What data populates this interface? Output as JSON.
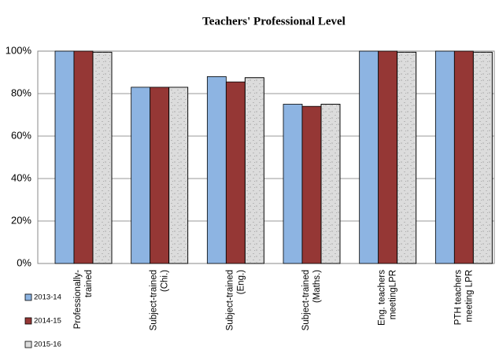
{
  "chart_data": {
    "type": "bar",
    "title": "Teachers' Professional Level",
    "categories": [
      "Professionally-\ntrained",
      "Subject-trained\n(Chi.)",
      "Subject-trained\n(Eng.)",
      "Subject-trained\n(Maths.)",
      "Eng. teachers\nmeetingLPR",
      "PTH teachers\nmeeting LPR"
    ],
    "series": [
      {
        "name": "2013-14",
        "color": "#8db4e2",
        "values": [
          100,
          83,
          88,
          75,
          100,
          100
        ]
      },
      {
        "name": "2014-15",
        "color": "#953735",
        "values": [
          100,
          83,
          85.5,
          74,
          100,
          100
        ]
      },
      {
        "name": "2015-16",
        "color": "#dcdcdc",
        "values": [
          99.5,
          83,
          87.5,
          75,
          99.5,
          99.5
        ]
      }
    ],
    "ylim": [
      0,
      100
    ],
    "yticks": [
      {
        "value": 0,
        "label": "0%"
      },
      {
        "value": 20,
        "label": "20%"
      },
      {
        "value": 40,
        "label": "40%"
      },
      {
        "value": 60,
        "label": "60%"
      },
      {
        "value": 80,
        "label": "80%"
      },
      {
        "value": 100,
        "label": "100%"
      }
    ],
    "grid": true,
    "legend": "bottom-left"
  }
}
